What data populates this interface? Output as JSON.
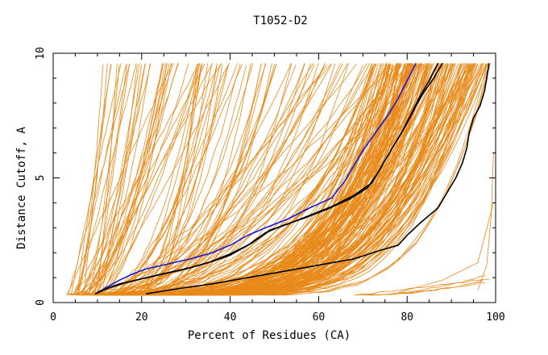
{
  "chart_data": {
    "type": "line",
    "title": "T1052-D2",
    "xlabel": "Percent of Residues (CA)",
    "ylabel": "Distance Cutoff, A",
    "xlim": [
      0,
      100
    ],
    "ylim": [
      0,
      10
    ],
    "x_ticks": [
      0,
      20,
      40,
      60,
      80,
      100
    ],
    "y_ticks": [
      0,
      5,
      10
    ],
    "grid": false,
    "legend": "none",
    "colors": {
      "background_models": "#e88a1a",
      "highlight_blue": "#1a1adc",
      "highlight_black": "#000000",
      "axes": "#000000"
    },
    "highlight_series": [
      {
        "color": "blue",
        "points": [
          [
            9.5,
            0.35
          ],
          [
            12,
            0.6
          ],
          [
            15,
            0.9
          ],
          [
            18,
            1.15
          ],
          [
            21,
            1.35
          ],
          [
            26,
            1.55
          ],
          [
            31,
            1.75
          ],
          [
            36,
            2.0
          ],
          [
            40,
            2.3
          ],
          [
            44,
            2.7
          ],
          [
            48,
            3.0
          ],
          [
            53,
            3.35
          ],
          [
            58,
            3.8
          ],
          [
            63,
            4.2
          ],
          [
            66,
            4.9
          ],
          [
            68,
            5.5
          ],
          [
            70,
            6.1
          ],
          [
            72,
            6.6
          ],
          [
            74,
            7.1
          ],
          [
            76,
            7.6
          ],
          [
            78,
            8.2
          ],
          [
            80,
            8.9
          ],
          [
            82,
            9.6
          ]
        ]
      },
      {
        "color": "black",
        "points": [
          [
            9.5,
            0.35
          ],
          [
            12,
            0.55
          ],
          [
            15,
            0.75
          ],
          [
            20,
            0.95
          ],
          [
            25,
            1.15
          ],
          [
            30,
            1.35
          ],
          [
            35,
            1.6
          ],
          [
            40,
            1.95
          ],
          [
            44,
            2.3
          ],
          [
            48,
            2.8
          ],
          [
            52,
            3.1
          ],
          [
            57,
            3.4
          ],
          [
            62,
            3.75
          ],
          [
            67,
            4.15
          ],
          [
            71,
            4.6
          ],
          [
            73,
            5.1
          ],
          [
            75,
            5.7
          ],
          [
            77,
            6.3
          ],
          [
            79,
            6.9
          ],
          [
            81,
            7.6
          ],
          [
            83,
            8.3
          ],
          [
            85,
            8.9
          ],
          [
            87,
            9.6
          ]
        ]
      },
      {
        "color": "black",
        "points": [
          [
            9.5,
            0.35
          ],
          [
            12,
            0.55
          ],
          [
            16,
            0.78
          ],
          [
            21,
            1.0
          ],
          [
            26,
            1.2
          ],
          [
            31,
            1.4
          ],
          [
            36,
            1.65
          ],
          [
            40,
            1.9
          ],
          [
            45,
            2.4
          ],
          [
            49,
            2.9
          ],
          [
            53,
            3.15
          ],
          [
            58,
            3.5
          ],
          [
            63,
            3.85
          ],
          [
            68,
            4.3
          ],
          [
            72,
            4.8
          ],
          [
            74,
            5.4
          ],
          [
            76,
            6.0
          ],
          [
            78,
            6.6
          ],
          [
            80,
            7.2
          ],
          [
            82,
            7.9
          ],
          [
            84,
            8.5
          ],
          [
            86,
            9.0
          ],
          [
            88,
            9.6
          ]
        ]
      },
      {
        "color": "black",
        "points": [
          [
            21,
            0.35
          ],
          [
            28,
            0.55
          ],
          [
            36,
            0.75
          ],
          [
            44,
            1.0
          ],
          [
            52,
            1.25
          ],
          [
            60,
            1.5
          ],
          [
            68,
            1.75
          ],
          [
            74,
            2.1
          ],
          [
            78,
            2.3
          ],
          [
            80,
            2.7
          ],
          [
            83,
            3.2
          ],
          [
            87,
            3.8
          ],
          [
            89,
            4.4
          ],
          [
            91,
            5.0
          ],
          [
            92.5,
            5.6
          ],
          [
            93.5,
            6.2
          ],
          [
            94,
            6.8
          ],
          [
            95,
            7.4
          ],
          [
            96.5,
            7.9
          ],
          [
            97.5,
            8.5
          ],
          [
            98,
            9.0
          ],
          [
            98.5,
            9.6
          ]
        ]
      }
    ]
  }
}
